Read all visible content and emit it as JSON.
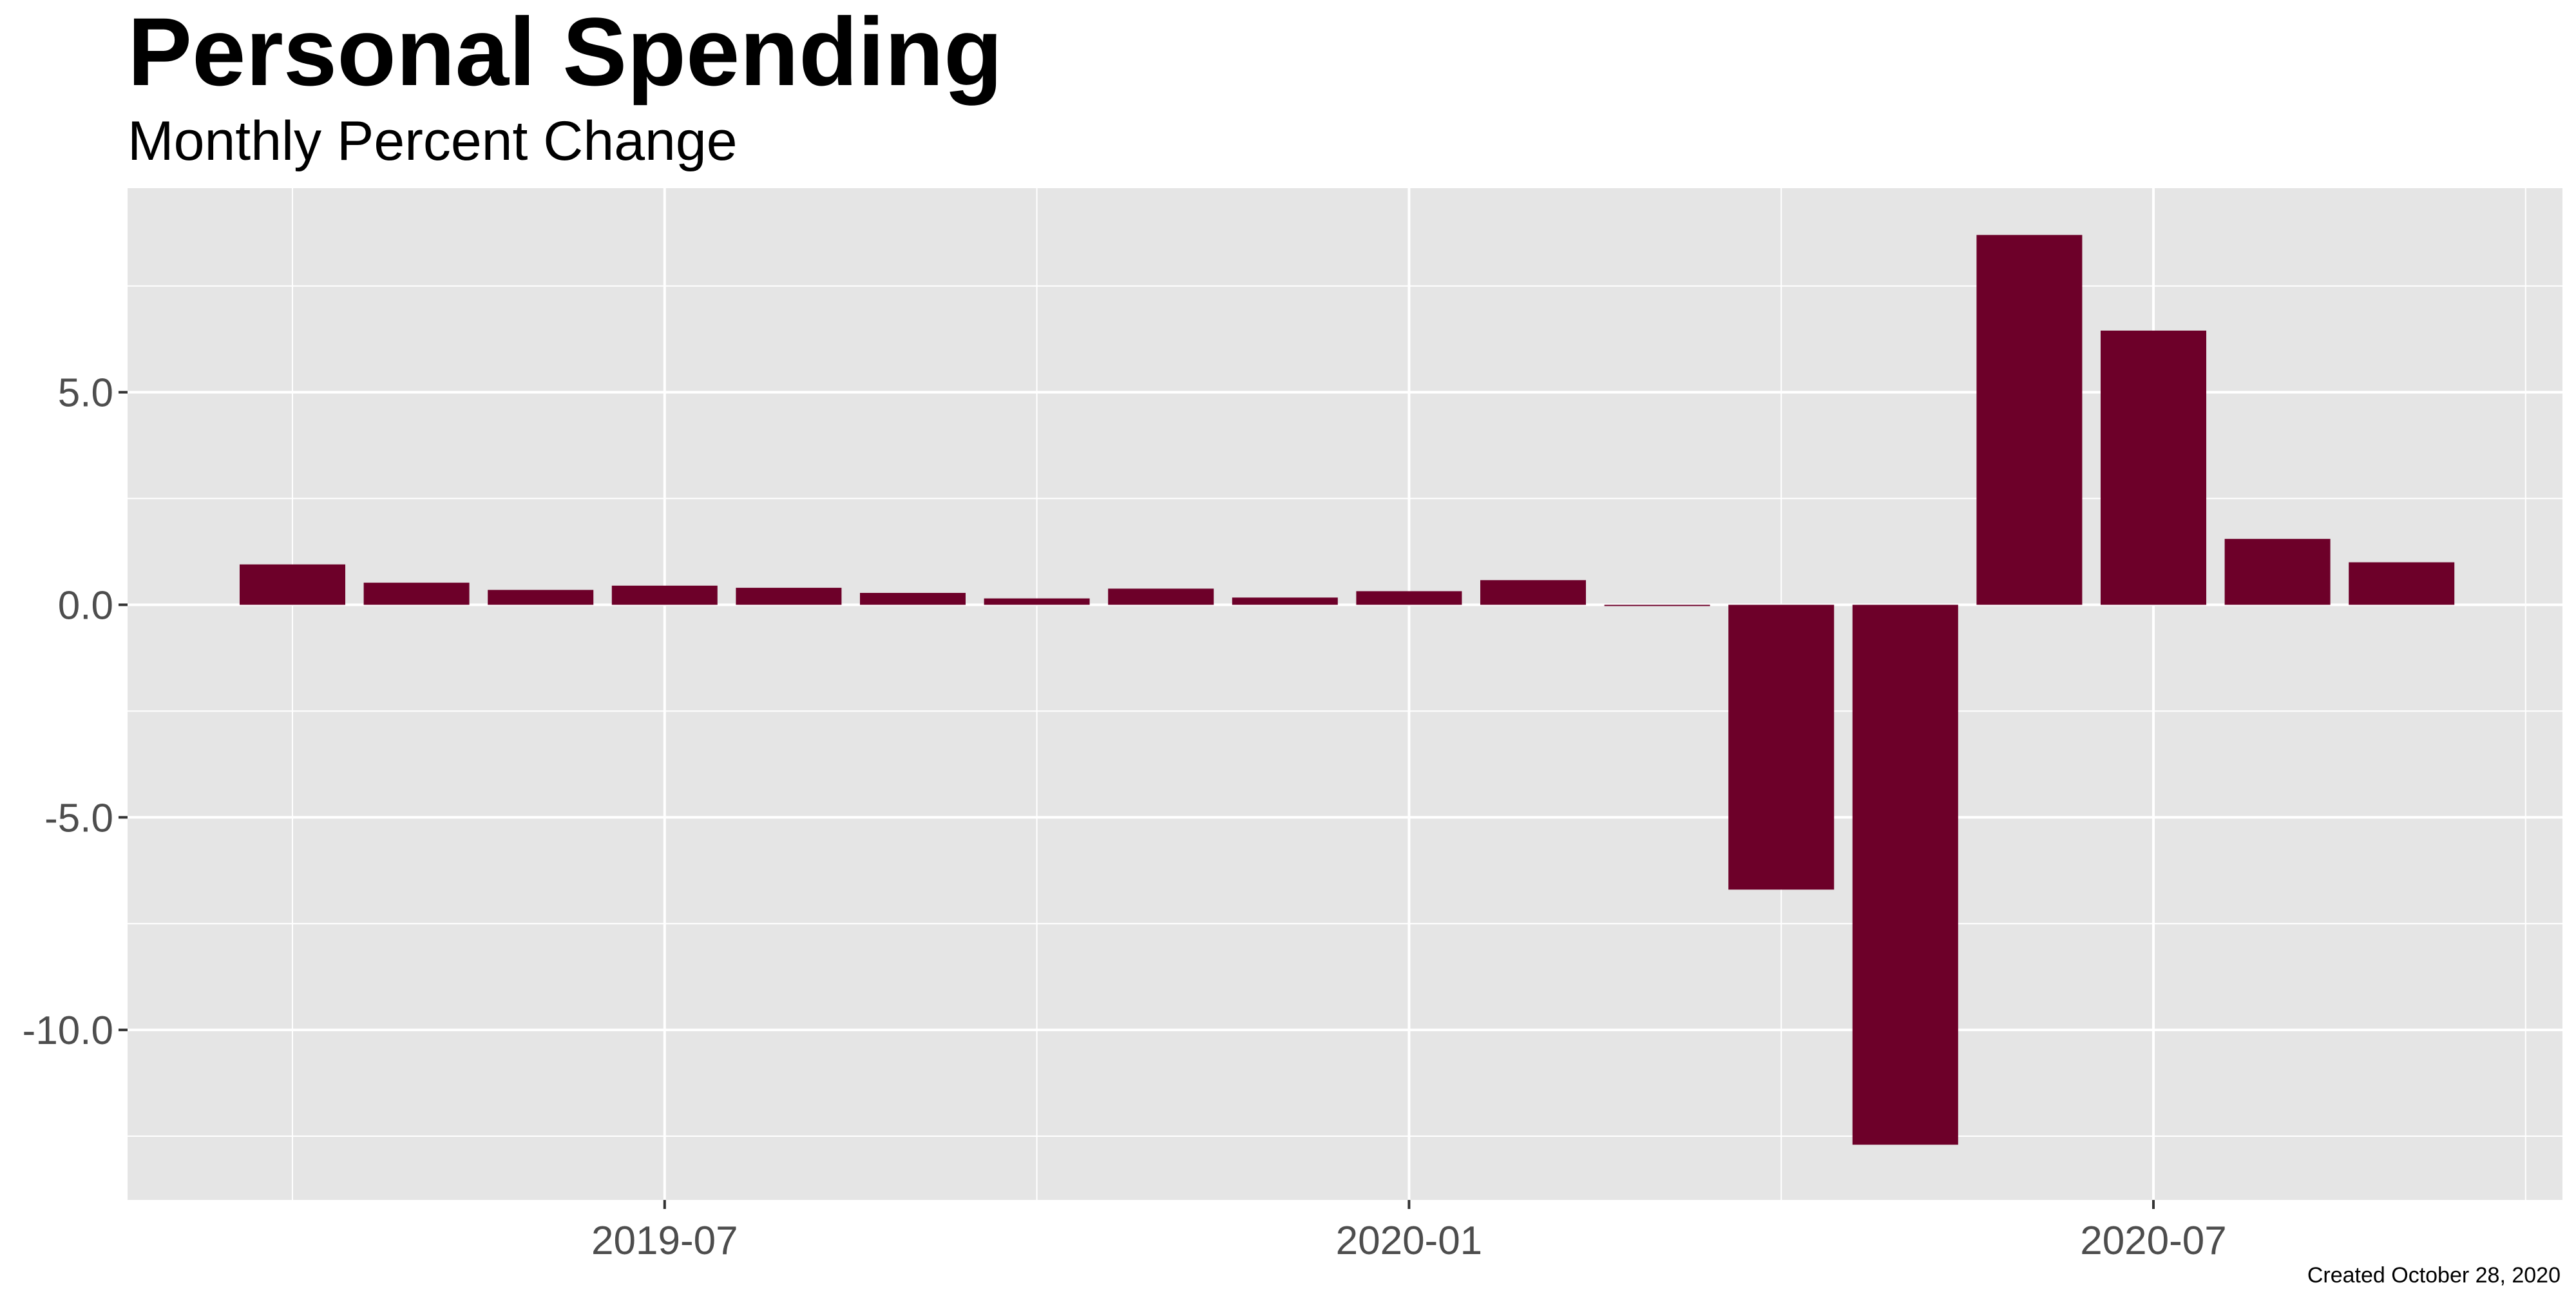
{
  "chart_data": {
    "type": "bar",
    "title": "Personal Spending",
    "subtitle": "Monthly Percent Change",
    "caption": "Created October 28, 2020",
    "xlabel": "",
    "ylabel": "",
    "categories": [
      "2019-04",
      "2019-05",
      "2019-06",
      "2019-07",
      "2019-08",
      "2019-09",
      "2019-10",
      "2019-11",
      "2019-12",
      "2020-01",
      "2020-02",
      "2020-03",
      "2020-04",
      "2020-05",
      "2020-06",
      "2020-07",
      "2020-08",
      "2020-09"
    ],
    "values": [
      0.95,
      0.52,
      0.35,
      0.45,
      0.4,
      0.28,
      0.15,
      0.38,
      0.17,
      0.32,
      0.58,
      -0.03,
      -6.7,
      -12.7,
      8.7,
      6.45,
      1.55,
      1.0
    ],
    "ylim": [
      -14.0,
      9.8
    ],
    "yticks": [
      {
        "value": 5.0,
        "label": "5.0"
      },
      {
        "value": 0.0,
        "label": "0.0"
      },
      {
        "value": -5.0,
        "label": "-5.0"
      },
      {
        "value": -10.0,
        "label": "-10.0"
      }
    ],
    "yminor": [
      7.5,
      2.5,
      -2.5,
      -7.5,
      -12.5
    ],
    "xticks": [
      {
        "index": 3,
        "label": "2019-07"
      },
      {
        "index": 9,
        "label": "2020-01"
      },
      {
        "index": 15,
        "label": "2020-07"
      }
    ],
    "xminor": [
      0,
      6,
      12,
      18
    ],
    "grid": true,
    "legend": "none",
    "colors": {
      "bar": "#6d0029",
      "panel": "#e5e5e5",
      "grid": "#ffffff"
    }
  }
}
